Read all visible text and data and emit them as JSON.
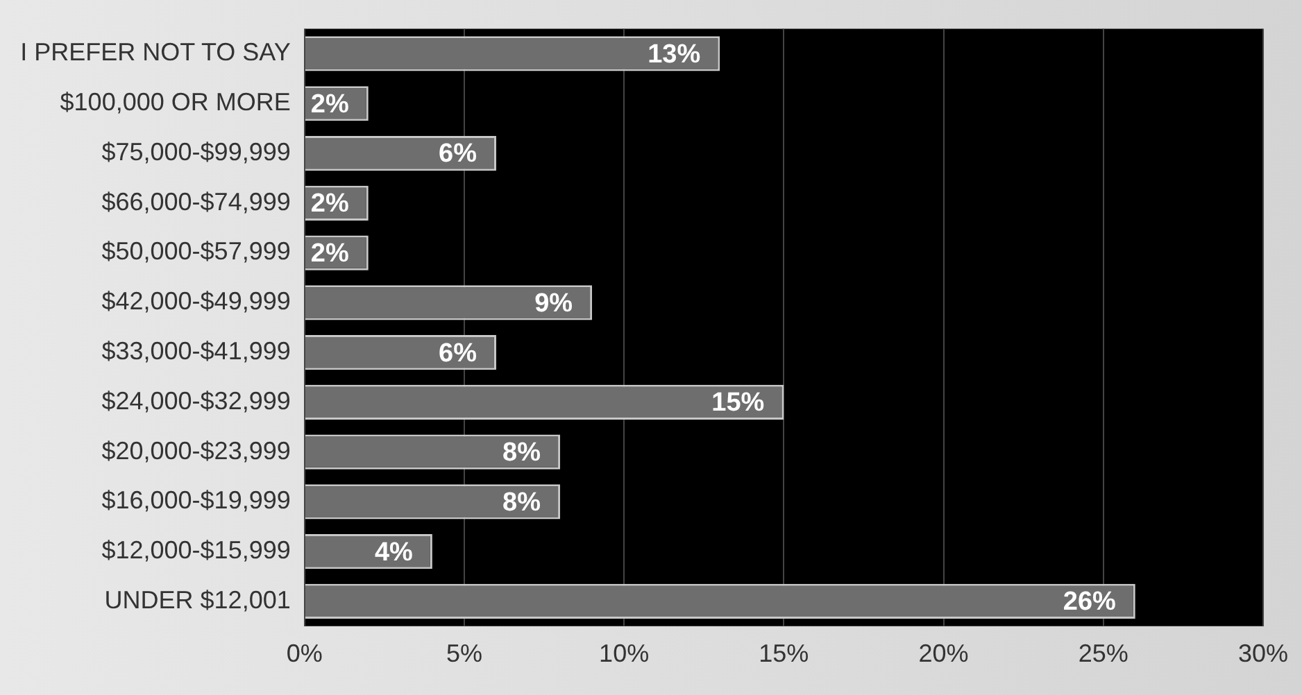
{
  "chart_data": {
    "type": "bar",
    "orientation": "horizontal",
    "categories": [
      "I PREFER NOT TO SAY",
      "$100,000 OR MORE",
      "$75,000-$99,999",
      "$66,000-$74,999",
      "$50,000-$57,999",
      "$42,000-$49,999",
      "$33,000-$41,999",
      "$24,000-$32,999",
      "$20,000-$23,999",
      "$16,000-$19,999",
      "$12,000-$15,999",
      "UNDER $12,001"
    ],
    "values": [
      13,
      2,
      6,
      2,
      2,
      9,
      6,
      15,
      8,
      8,
      4,
      26
    ],
    "color": "#6e6e6e",
    "value_labels": [
      "13%",
      "2%",
      "6%",
      "2%",
      "2%",
      "9%",
      "6%",
      "15%",
      "8%",
      "8%",
      "4%",
      "26%"
    ],
    "xlim": [
      0,
      30
    ],
    "xticks": [
      {
        "value": 0,
        "label": "0%"
      },
      {
        "value": 5,
        "label": "5%"
      },
      {
        "value": 10,
        "label": "10%"
      },
      {
        "value": 15,
        "label": "15%"
      },
      {
        "value": 20,
        "label": "20%"
      },
      {
        "value": 25,
        "label": "25%"
      },
      {
        "value": 30,
        "label": "30%"
      }
    ],
    "grid": "x",
    "legend": false
  }
}
